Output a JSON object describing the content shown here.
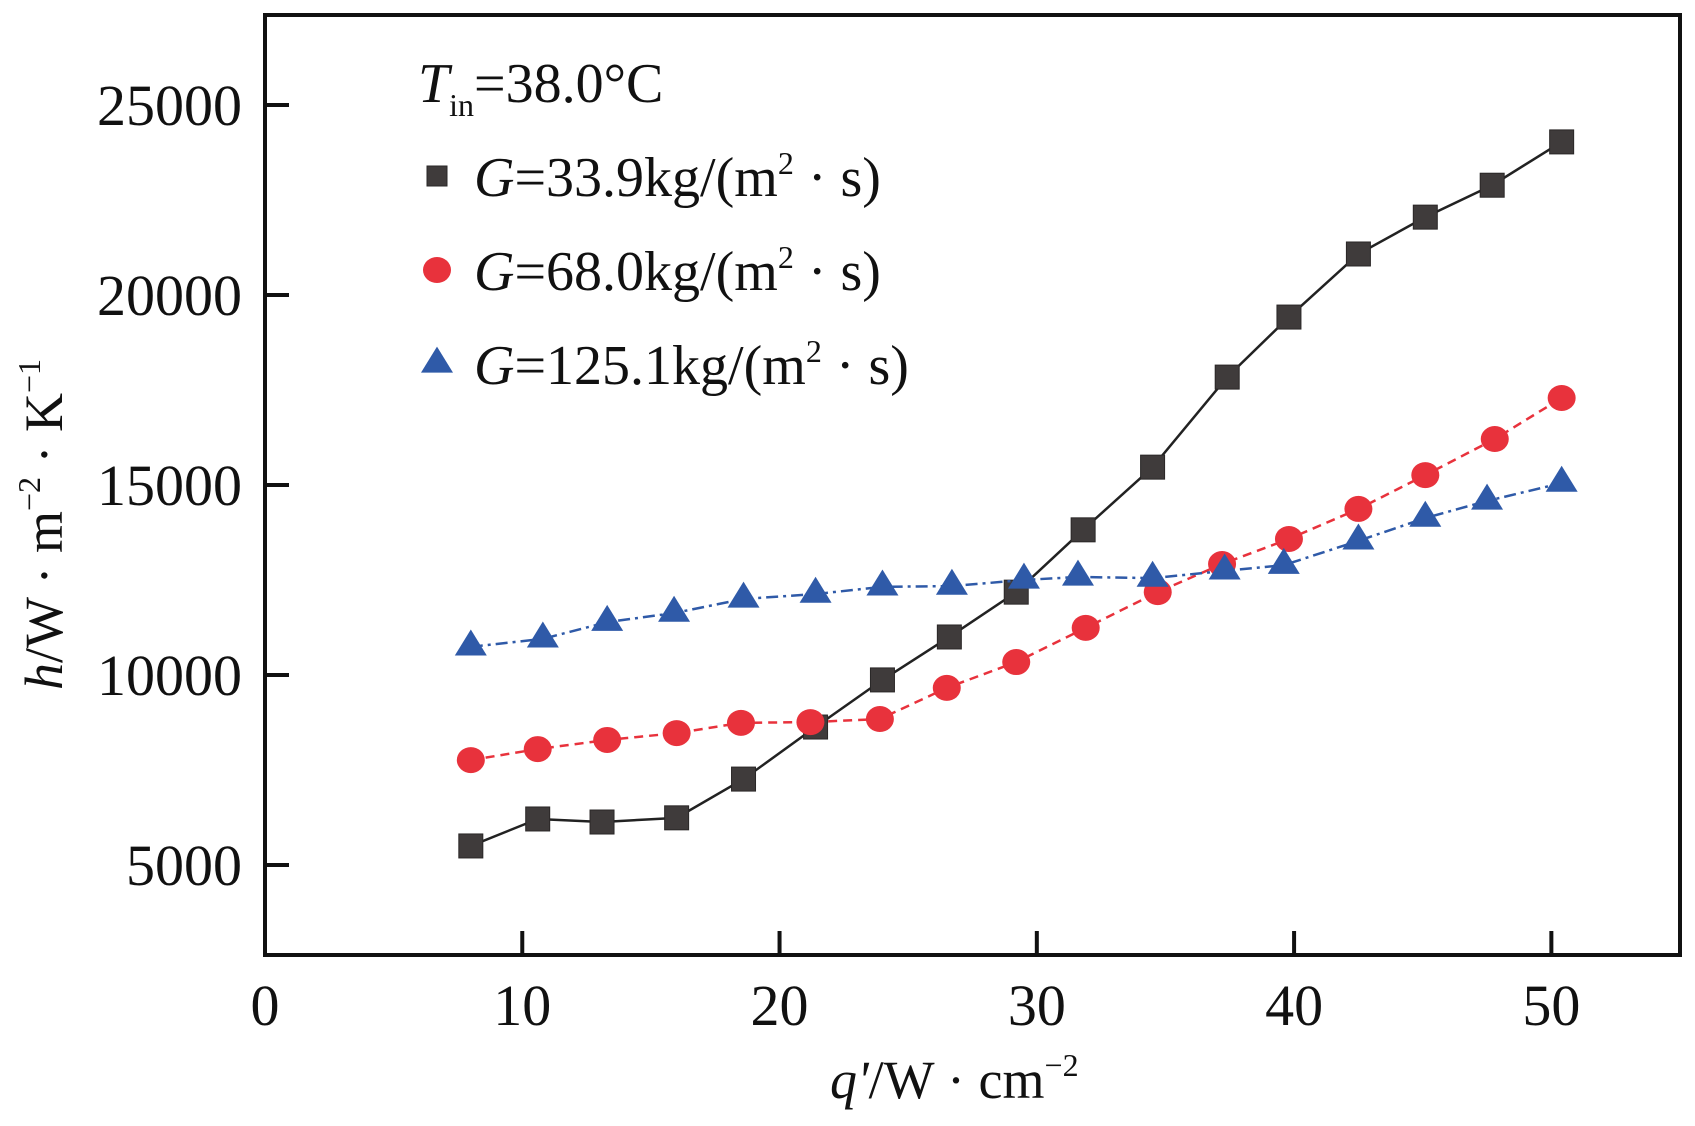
{
  "chart_data": {
    "type": "line",
    "title": "",
    "xlabel": "q'/W · cm⁻²",
    "xlabel_parts": {
      "var": "q'",
      "unit": "/W · cm",
      "sup": "−2"
    },
    "ylabel": "h/W · m⁻² · K⁻¹",
    "ylabel_parts": {
      "var": "h",
      "unit1": "/W · m",
      "sup1": "−2",
      "unit2": " · K",
      "sup2": "−1"
    },
    "xlim": [
      0,
      55
    ],
    "ylim": [
      2630,
      27370
    ],
    "xticks": [
      0,
      10,
      20,
      30,
      40,
      50
    ],
    "xtick_labels": [
      "0",
      "10",
      "20",
      "30",
      "40",
      "50"
    ],
    "yticks": [
      5000,
      10000,
      15000,
      20000,
      25000
    ],
    "ytick_labels": [
      "5000",
      "10000",
      "15000",
      "20000",
      "25000"
    ],
    "grid": false,
    "legend_position": "top-left",
    "annotation": {
      "var": "T",
      "sub": "in",
      "text": "=38.0°C"
    },
    "series": [
      {
        "name": "G=33.9kg/(m² · s)",
        "label_var": "G",
        "label_text": "=33.9kg/(m",
        "label_sup": "2",
        "label_tail": " · s)",
        "marker": "square",
        "color": "#3f3b3b",
        "line_color": "#222222",
        "line_style": "solid",
        "x": [
          8.0,
          10.6,
          13.1,
          16.0,
          18.6,
          21.4,
          24.0,
          26.6,
          29.2,
          31.8,
          34.5,
          37.4,
          39.8,
          42.5,
          45.1,
          47.7,
          50.4
        ],
        "y": [
          5500,
          6210,
          6130,
          6240,
          7260,
          8630,
          9870,
          11000,
          12180,
          13820,
          15470,
          17840,
          19420,
          21080,
          22050,
          22890,
          24030
        ]
      },
      {
        "name": "G=68.0kg/(m² · s)",
        "label_var": "G",
        "label_text": "=68.0kg/(m",
        "label_sup": "2",
        "label_tail": " · s)",
        "marker": "circle",
        "color": "#e8323c",
        "line_color": "#e8323c",
        "line_style": "dash",
        "x": [
          8.0,
          10.6,
          13.3,
          16.0,
          18.5,
          21.2,
          23.9,
          26.5,
          29.2,
          31.9,
          34.7,
          37.2,
          39.8,
          42.5,
          45.1,
          47.8,
          50.4
        ],
        "y": [
          7760,
          8050,
          8290,
          8470,
          8740,
          8760,
          8840,
          9660,
          10340,
          11240,
          12180,
          12920,
          13580,
          14370,
          15260,
          16210,
          17290
        ]
      },
      {
        "name": "G=125.1kg/(m² · s)",
        "label_var": "G",
        "label_text": "=125.1kg/(m",
        "label_sup": "2",
        "label_tail": " · s)",
        "marker": "triangle",
        "color": "#2f5aa8",
        "line_color": "#2f5aa8",
        "line_style": "dashdot",
        "x": [
          8.0,
          10.8,
          13.3,
          15.9,
          18.6,
          21.4,
          24.0,
          26.7,
          29.5,
          31.6,
          34.5,
          37.3,
          39.6,
          42.5,
          45.1,
          47.5,
          50.4
        ],
        "y": [
          10740,
          10950,
          11390,
          11630,
          12000,
          12130,
          12320,
          12340,
          12500,
          12580,
          12550,
          12740,
          12890,
          13530,
          14130,
          14580,
          15050
        ]
      }
    ]
  }
}
